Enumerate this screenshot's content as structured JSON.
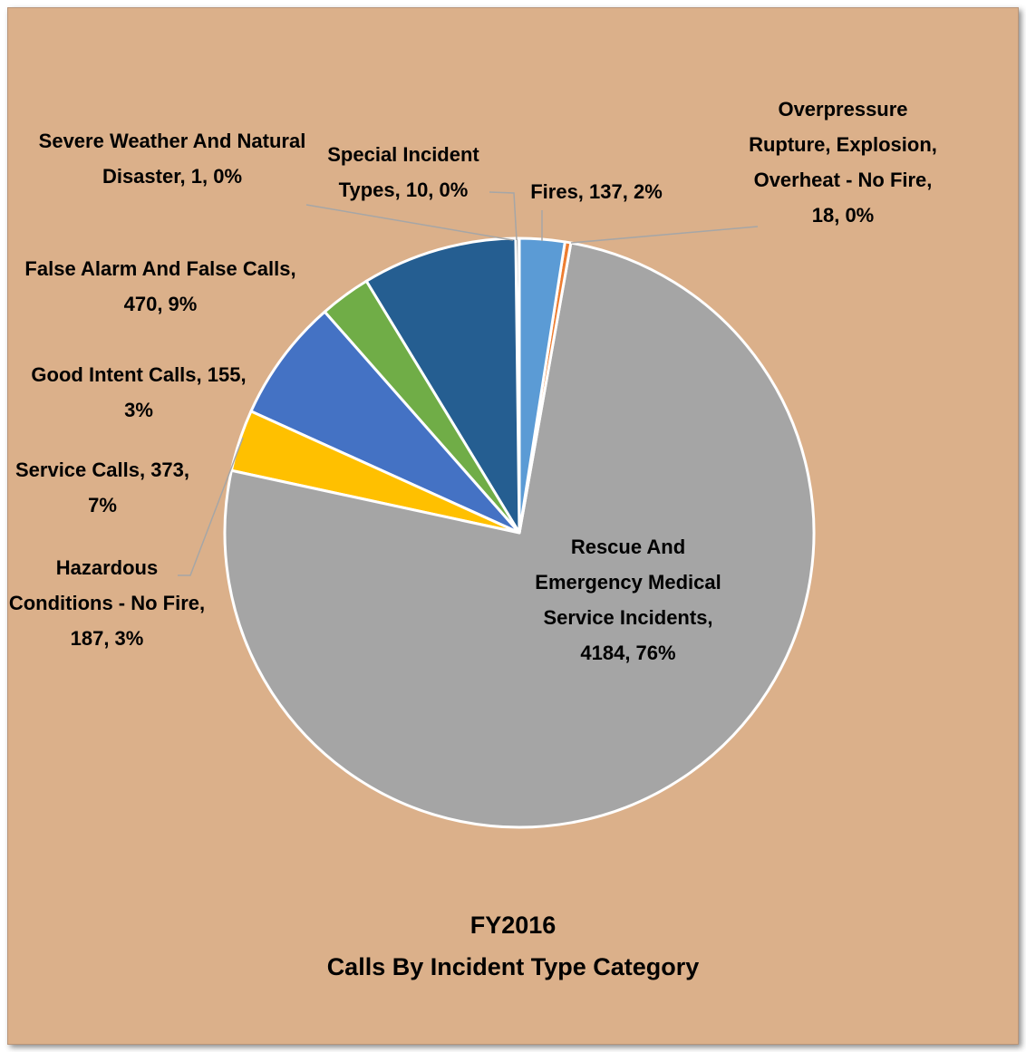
{
  "chart_data": {
    "type": "pie",
    "title": "FY2016",
    "subtitle": "Calls By Incident Type Category",
    "values": [
      137,
      18,
      4184,
      187,
      373,
      155,
      470,
      10,
      1
    ],
    "value_labels": [
      "Fires, 137, 2%",
      "Overpressure Rupture, Explosion, Overheat - No Fire, 18, 0%",
      "Rescue And Emergency Medical Service Incidents, 4184, 76%",
      "Hazardous Conditions - No Fire, 187, 3%",
      "Service Calls, 373, 7%",
      "Good Intent Calls, 155, 3%",
      "False Alarm And False Calls, 470, 9%",
      "Special Incident Types, 10, 0%",
      "Severe Weather And Natural Disaster, 1, 0%"
    ],
    "colors": [
      "#5b9bd5",
      "#ed7d31",
      "#a5a5a5",
      "#ffc000",
      "#4472c4",
      "#70ad47",
      "#255e91",
      "#636363",
      "#997300"
    ]
  }
}
